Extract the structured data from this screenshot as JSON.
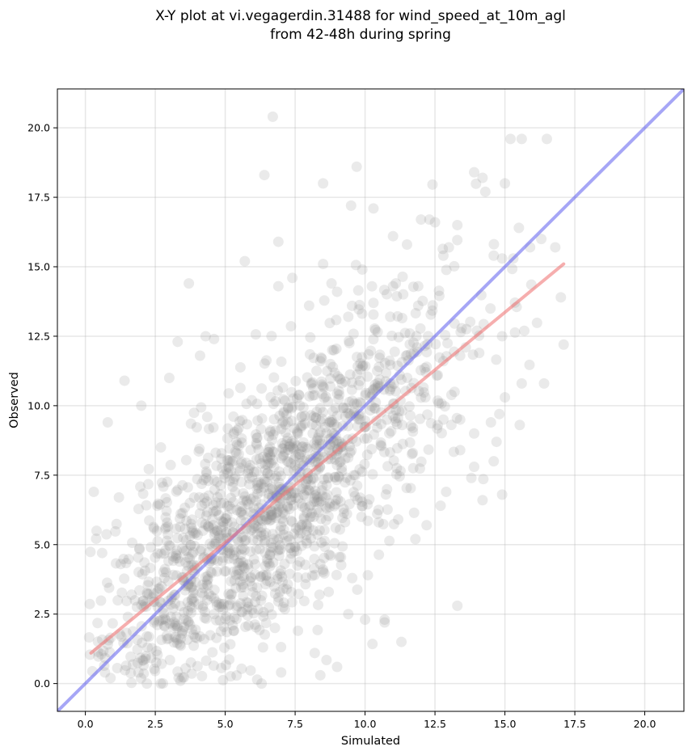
{
  "chart_data": {
    "type": "scatter",
    "title_lines": [
      "X-Y plot at vi.vegagerdin.31488 for wind_speed_at_10m_agl",
      "from 42-48h during spring"
    ],
    "xlabel": "Simulated",
    "ylabel": "Observed",
    "xlim": [
      -1.0,
      21.4
    ],
    "ylim": [
      -1.0,
      21.4
    ],
    "x_ticks": [
      0.0,
      2.5,
      5.0,
      7.5,
      10.0,
      12.5,
      15.0,
      17.5,
      20.0
    ],
    "x_tick_labels": [
      "0.0",
      "2.5",
      "5.0",
      "7.5",
      "10.0",
      "12.5",
      "15.0",
      "17.5",
      "20.0"
    ],
    "y_ticks": [
      0.0,
      2.5,
      5.0,
      7.5,
      10.0,
      12.5,
      15.0,
      17.5,
      20.0
    ],
    "y_tick_labels": [
      "0.0",
      "2.5",
      "5.0",
      "7.5",
      "10.0",
      "12.5",
      "15.0",
      "17.5",
      "20.0"
    ],
    "grid": true,
    "point_color": "#8c8c8c",
    "series": [
      {
        "kind": "scatter",
        "x": [
          6.7,
          15.2,
          15.6,
          16.5,
          6.4,
          8.5,
          9.5,
          9.7,
          10.3,
          13.9,
          14.2,
          14.3,
          15.0,
          12.3,
          12.5,
          15.5,
          12.0,
          11.5,
          11.0,
          13.3,
          12.8,
          16.3,
          15.9,
          14.6,
          14.9,
          15.3,
          16.4,
          13.4,
          12.7,
          10.7,
          7.0,
          6.3,
          3.7,
          6.9,
          5.7,
          3.3,
          4.3,
          4.6,
          4.1,
          3.0,
          2.0,
          1.4,
          0.8,
          2.7,
          0.3,
          0.4,
          1.2,
          0.6,
          14.0,
          14.9,
          15.0,
          15.6,
          14.7,
          14.5,
          14.9,
          13.3,
          16.8,
          17.0,
          17.1,
          13.2,
          13.4,
          13.9,
          13.8,
          12.2,
          11.8,
          12.9,
          10.0,
          11.3,
          10.7,
          9.0,
          8.4,
          7.6,
          8.2,
          9.4,
          10.1,
          8.7,
          8.4,
          6.9,
          3.4,
          2.7,
          2.2,
          1.9,
          0.9,
          0.7,
          11.1,
          11.0,
          10.3,
          11.9,
          11.9,
          11.6,
          12.2,
          12.6,
          13.6,
          13.4,
          9.9,
          8.5,
          8.0,
          8.8,
          9.4,
          9.0,
          7.4,
          6.9,
          10.9,
          12.8,
          13.9,
          14.8,
          14.6,
          14.2
        ],
        "y": [
          20.4,
          19.6,
          19.6,
          19.6,
          18.3,
          18.0,
          17.2,
          18.6,
          17.1,
          18.4,
          18.2,
          17.7,
          18.0,
          16.7,
          16.6,
          16.4,
          16.7,
          15.8,
          16.1,
          16.5,
          15.4,
          16.0,
          15.7,
          15.4,
          15.3,
          15.3,
          10.8,
          8.4,
          6.4,
          2.3,
          0.4,
          0.0,
          14.4,
          15.9,
          15.2,
          12.3,
          12.5,
          12.4,
          11.8,
          11.0,
          10.0,
          10.9,
          9.4,
          8.5,
          6.9,
          5.5,
          6.7,
          4.7,
          12.7,
          12.5,
          10.3,
          10.8,
          8.7,
          9.4,
          6.8,
          2.8,
          15.7,
          13.9,
          12.2,
          10.5,
          9.5,
          7.8,
          7.4,
          5.7,
          5.2,
          6.9,
          2.3,
          1.5,
          2.2,
          0.6,
          0.3,
          1.9,
          1.1,
          2.5,
          3.9,
          3.3,
          4.3,
          3.1,
          0.1,
          0.0,
          0.0,
          0.4,
          0.2,
          0.4,
          14.4,
          14.3,
          13.7,
          14.3,
          13.6,
          12.6,
          11.4,
          11.1,
          12.1,
          11.8,
          14.9,
          15.1,
          13.6,
          14.4,
          13.2,
          14.1,
          14.6,
          14.3,
          13.2,
          9.5,
          9.0,
          9.7,
          8.0,
          6.6
        ],
        "generated_bulk": {
          "count": 1500,
          "seed": 31488,
          "x_mean": 6.3,
          "x_std": 3.3,
          "y_slope": 0.82,
          "y_intercept": 1.0,
          "y_noise_std": 2.2,
          "x_range": [
            0.0,
            17.5
          ],
          "y_range": [
            0.0,
            19.0
          ]
        }
      }
    ],
    "lines": [
      {
        "name": "",
        "kind": "identity",
        "x": [
          -1.0,
          21.4
        ],
        "y": [
          -1.0,
          21.4
        ],
        "color": "#6b6bf0"
      },
      {
        "name": "",
        "kind": "fit",
        "x": [
          0.2,
          17.1
        ],
        "y": [
          1.1,
          15.1
        ],
        "color": "#f07878"
      }
    ]
  }
}
